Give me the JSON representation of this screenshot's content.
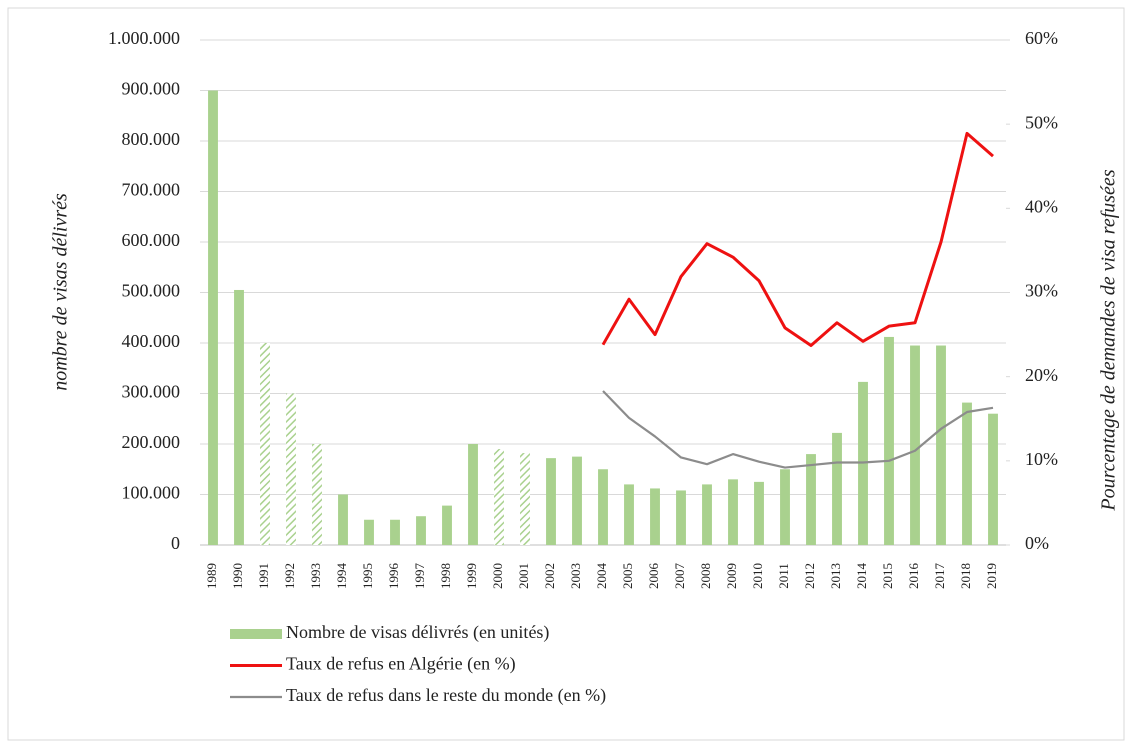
{
  "chart_data": {
    "type": "bar_line",
    "y_label": "nombre de visas délivrés",
    "y2_label": "Pourcentage de demandes de visa refusées",
    "categories": [
      "1989",
      "1990",
      "1991",
      "1992",
      "1993",
      "1994",
      "1995",
      "1996",
      "1997",
      "1998",
      "1999",
      "2000",
      "2001",
      "2002",
      "2003",
      "2004",
      "2005",
      "2006",
      "2007",
      "2008",
      "2009",
      "2010",
      "2011",
      "2012",
      "2013",
      "2014",
      "2015",
      "2016",
      "2017",
      "2018",
      "2019"
    ],
    "series": [
      {
        "name": "Nombre de visas délivrés (en unités)",
        "type": "bar",
        "color": "#a9d18e",
        "values": [
          900000,
          505000,
          400000,
          300000,
          200000,
          100000,
          50000,
          50000,
          57000,
          78000,
          200000,
          190000,
          182000,
          172000,
          175000,
          150000,
          120000,
          112000,
          108000,
          120000,
          130000,
          125000,
          150000,
          180000,
          222000,
          323000,
          412000,
          395000,
          395000,
          282000,
          260000
        ],
        "hatched": [
          false,
          false,
          true,
          true,
          true,
          false,
          false,
          false,
          false,
          false,
          false,
          true,
          true,
          false,
          false,
          false,
          false,
          false,
          false,
          false,
          false,
          false,
          false,
          false,
          false,
          false,
          false,
          false,
          false,
          false,
          false
        ]
      },
      {
        "name": "Taux de refus en Algérie (en %)",
        "type": "line",
        "axis": "y2",
        "color": "#ee1111",
        "values": [
          null,
          null,
          null,
          null,
          null,
          null,
          null,
          null,
          null,
          null,
          null,
          null,
          null,
          null,
          null,
          23.8,
          29.2,
          25,
          31.9,
          35.8,
          34.2,
          31.4,
          25.8,
          23.7,
          26.4,
          24.2,
          26,
          26.4,
          36,
          48.9,
          46.2
        ]
      },
      {
        "name": "Taux de refus dans le reste du monde (en %)",
        "type": "line",
        "axis": "y2",
        "color": "#8c8c8c",
        "values": [
          null,
          null,
          null,
          null,
          null,
          null,
          null,
          null,
          null,
          null,
          null,
          null,
          null,
          null,
          null,
          18.3,
          15.1,
          12.9,
          10.4,
          9.6,
          10.8,
          9.9,
          9.2,
          9.5,
          9.8,
          9.8,
          10,
          11.2,
          13.8,
          15.8,
          16.3
        ]
      }
    ],
    "ylim": [
      0,
      1000000
    ],
    "yticks": [
      0,
      {
        "value": 100000,
        "label": "100.000"
      },
      {
        "value": 200000,
        "label": "200.000"
      },
      {
        "value": 300000,
        "label": "300.000"
      },
      {
        "value": 400000,
        "label": "400.000"
      },
      {
        "value": 500000,
        "label": "500.000"
      },
      {
        "value": 600000,
        "label": "600.000"
      },
      {
        "value": 700000,
        "label": "700.000"
      },
      {
        "value": 800000,
        "label": "800.000"
      },
      {
        "value": 900000,
        "label": "900.000"
      },
      {
        "value": 1000000,
        "label": "1.000.000"
      }
    ],
    "y2lim": [
      0,
      60
    ],
    "y2ticks": [
      {
        "value": 0,
        "label": "0%"
      },
      {
        "value": 10,
        "label": "10%"
      },
      {
        "value": 20,
        "label": "20%"
      },
      {
        "value": 30,
        "label": "30%"
      },
      {
        "value": 40,
        "label": "40%"
      },
      {
        "value": 50,
        "label": "50%"
      },
      {
        "value": 60,
        "label": "60%"
      }
    ],
    "grid": true,
    "legend": "bottom"
  }
}
